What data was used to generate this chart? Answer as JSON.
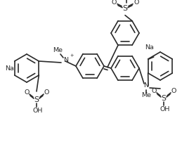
{
  "bg": "#ffffff",
  "lc": "#2a2a2a",
  "lw": 1.2,
  "fs": 6.8,
  "figsize": [
    2.59,
    2.02
  ],
  "dpi": 100,
  "xlim": [
    0,
    259
  ],
  "ylim": [
    0,
    202
  ]
}
